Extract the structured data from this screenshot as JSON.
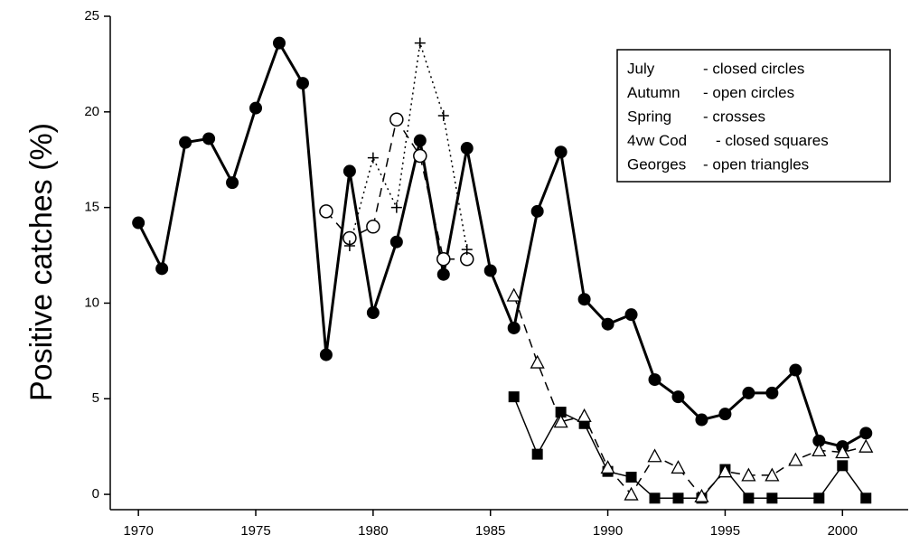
{
  "chart_data": {
    "type": "line",
    "y_label": "Positive catches (%)",
    "xlim": [
      1968.8,
      2002.8
    ],
    "xticks": [
      1970,
      1975,
      1980,
      1985,
      1990,
      1995,
      2000
    ],
    "ylim": [
      -0.8,
      25
    ],
    "yticks": [
      0,
      5,
      10,
      15,
      20,
      25
    ],
    "series": [
      {
        "name": "July",
        "description": "- closed circles",
        "color": "#000",
        "marker": "filled-circle",
        "line": "solid",
        "x": [
          1970,
          1971,
          1972,
          1973,
          1974,
          1975,
          1976,
          1977,
          1978,
          1979,
          1980,
          1981,
          1982,
          1983,
          1984,
          1985,
          1986,
          1987,
          1988,
          1989,
          1990,
          1991,
          1992,
          1993,
          1994,
          1995,
          1996,
          1997,
          1998,
          1999,
          2000,
          2001
        ],
        "values": [
          14.2,
          11.8,
          18.4,
          18.6,
          16.3,
          20.2,
          23.6,
          21.5,
          7.3,
          16.9,
          9.5,
          13.2,
          18.5,
          11.5,
          18.1,
          11.7,
          8.7,
          14.8,
          17.9,
          10.2,
          8.9,
          9.4,
          6.0,
          5.1,
          3.9,
          4.2,
          5.3,
          5.3,
          6.5,
          2.8,
          2.5,
          3.2
        ]
      },
      {
        "name": "Autumn",
        "description": "- open circles",
        "color": "#000",
        "marker": "open-circle",
        "line": "dashed",
        "x": [
          1978,
          1979,
          1980,
          1981,
          1982,
          1983,
          1984
        ],
        "values": [
          14.8,
          13.4,
          14.0,
          19.6,
          17.7,
          12.3,
          12.3
        ]
      },
      {
        "name": "Spring",
        "description": "- crosses",
        "color": "#000",
        "marker": "cross",
        "line": "dotted",
        "x": [
          1979,
          1980,
          1981,
          1982,
          1983,
          1984
        ],
        "values": [
          13.0,
          17.6,
          15.0,
          23.6,
          19.8,
          12.8
        ]
      },
      {
        "name": "4vw Cod",
        "description": "- closed squares",
        "color": "#000",
        "marker": "filled-square",
        "line": "solid",
        "x": [
          1986,
          1987,
          1988,
          1989,
          1990,
          1991,
          1992,
          1993,
          1994,
          1995,
          1996,
          1997,
          1999,
          2000,
          2001
        ],
        "values": [
          5.1,
          2.1,
          4.3,
          3.7,
          1.2,
          0.9,
          -0.2,
          -0.2,
          -0.2,
          1.3,
          -0.2,
          -0.2,
          -0.2,
          1.5,
          -0.2
        ]
      },
      {
        "name": "Georges",
        "description": "- open triangles",
        "color": "#000",
        "marker": "open-triangle",
        "line": "dashed",
        "x": [
          1986,
          1987,
          1988,
          1989,
          1990,
          1991,
          1992,
          1993,
          1994,
          1995,
          1996,
          1997,
          1998,
          1999,
          2000,
          2001
        ],
        "values": [
          10.4,
          6.9,
          3.8,
          4.1,
          1.4,
          0.0,
          2.0,
          1.4,
          -0.1,
          1.2,
          1.0,
          1.0,
          1.8,
          2.3,
          2.2,
          2.5
        ]
      }
    ]
  }
}
